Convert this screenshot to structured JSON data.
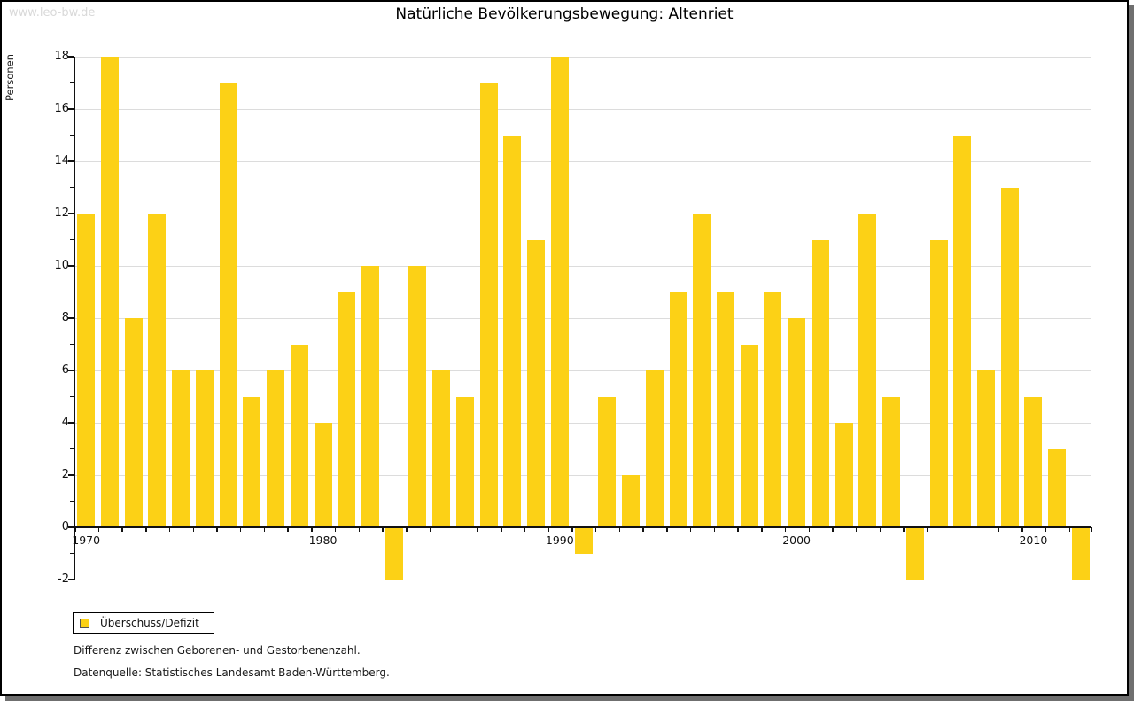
{
  "watermark": "www.leo-bw.de",
  "title": "Natürliche Bevölkerungsbewegung: Altenriet",
  "legend": {
    "label": "Überschuss/Defizit"
  },
  "footnotes": [
    "Differenz zwischen Geborenen- und Gestorbenenzahl.",
    "Datenquelle: Statistisches Landesamt Baden-Württemberg."
  ],
  "colors": {
    "bar": "#FCD116",
    "grid": "#DCDCDC",
    "axis": "#111111",
    "shadow": "#6F6F6F",
    "watermark": "#D9D9D9"
  },
  "chart_data": {
    "type": "bar",
    "title": "Natürliche Bevölkerungsbewegung: Altenriet",
    "xlabel": "",
    "ylabel": "Personen",
    "categories": [
      1970,
      1971,
      1972,
      1973,
      1974,
      1975,
      1976,
      1977,
      1978,
      1979,
      1980,
      1981,
      1982,
      1983,
      1984,
      1985,
      1986,
      1987,
      1988,
      1989,
      1990,
      1991,
      1992,
      1993,
      1994,
      1995,
      1996,
      1997,
      1998,
      1999,
      2000,
      2001,
      2002,
      2003,
      2004,
      2005,
      2006,
      2007,
      2008,
      2009,
      2010,
      2011,
      2012
    ],
    "values": [
      12,
      18,
      8,
      12,
      6,
      6,
      17,
      5,
      6,
      7,
      4,
      9,
      10,
      -2,
      10,
      6,
      5,
      17,
      15,
      11,
      18,
      -1,
      5,
      2,
      6,
      9,
      12,
      9,
      7,
      9,
      8,
      11,
      4,
      12,
      5,
      -2,
      11,
      15,
      6,
      13,
      5,
      3,
      -2
    ],
    "series_name": "Überschuss/Defizit",
    "ylim": [
      -2,
      18
    ],
    "y_major_tick_step": 2,
    "y_minor_tick_step": 1,
    "x_tick_labels": [
      1970,
      1980,
      1990,
      2000,
      2010
    ],
    "grid": true,
    "legend_position": "bottom-left"
  }
}
